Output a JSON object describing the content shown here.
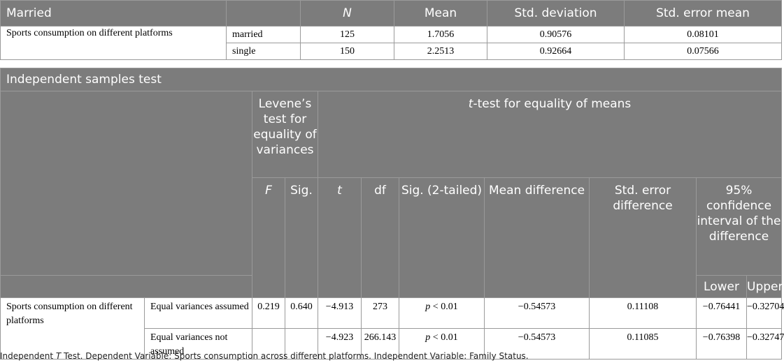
{
  "table1": {
    "title": "Married",
    "headers": [
      "N",
      "Mean",
      "Std. deviation",
      "Std. error mean"
    ],
    "variable": "Sports consumption on different platforms",
    "rows": [
      {
        "group": "married",
        "n": "125",
        "mean": "1.7056",
        "sd": "0.90576",
        "se": "0.08101"
      },
      {
        "group": "single",
        "n": "150",
        "mean": "2.2513",
        "sd": "0.92664",
        "se": "0.07566"
      }
    ]
  },
  "table2": {
    "title": "Independent samples test",
    "levene_header": "Levene’s test for equality of variances",
    "ttest_header_italic": "t",
    "ttest_header_rest": "-test for equality of means",
    "col_F": "F",
    "col_sig": "Sig.",
    "col_t": "t",
    "col_df": "df",
    "col_sig2": "Sig. (2-tailed)",
    "col_meandiff": "Mean difference",
    "col_sediff": "Std. error difference",
    "col_ci": "95% confidence interval of the difference",
    "col_lower": "Lower",
    "col_upper": "Upper",
    "variable": "Sports consumption on different platforms",
    "p_italic": "p",
    "rows": [
      {
        "label": "Equal variances assumed",
        "F": "0.219",
        "sig": "0.640",
        "t": "−4.913",
        "df": "273",
        "p_rest": " < 0.01",
        "meandiff": "−0.54573",
        "sediff": "0.11108",
        "lower": "−0.76441",
        "upper": "−0.32704"
      },
      {
        "label": "Equal variances not assumed",
        "F": "",
        "sig": "",
        "t": "−4.923",
        "df": "266.143",
        "p_rest": " < 0.01",
        "meandiff": "−0.54573",
        "sediff": "0.11085",
        "lower": "−0.76398",
        "upper": "−0.32747"
      }
    ]
  },
  "footnote": {
    "part1": "Independent ",
    "italic": "T",
    "part2": " Test. Dependent Variable: Sports consumption across different platforms. Independent Variable: Family Status."
  }
}
